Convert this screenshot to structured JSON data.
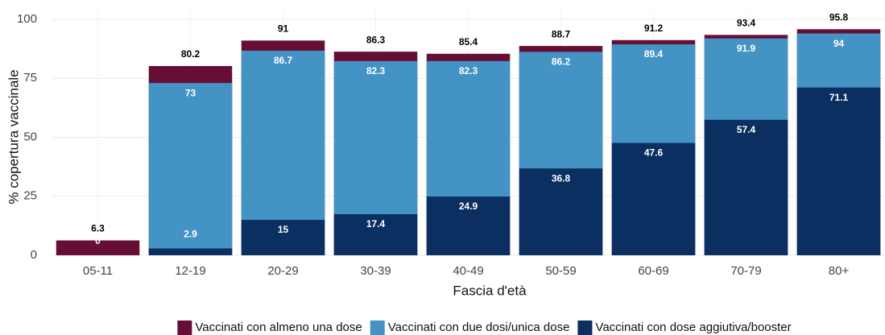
{
  "chart_data": {
    "type": "bar",
    "x_label": "Fascia d'età",
    "y_label": "% copertura vaccinale",
    "categories": [
      "05-11",
      "12-19",
      "20-29",
      "30-39",
      "40-49",
      "50-59",
      "60-69",
      "70-79",
      "80+"
    ],
    "series": [
      {
        "name": "Vaccinati con almeno una dose",
        "color": "#670e36",
        "values": [
          6.3,
          80.2,
          91,
          86.3,
          85.4,
          88.7,
          91.2,
          93.4,
          95.8
        ]
      },
      {
        "name": "Vaccinati con due dosi/unica dose",
        "color": "#4393c4",
        "values": [
          0,
          73,
          86.7,
          82.3,
          82.3,
          86.2,
          89.4,
          91.9,
          94
        ]
      },
      {
        "name": "Vaccinati con dose aggiutiva/booster",
        "color": "#0b2f60",
        "values": [
          null,
          2.9,
          15,
          17.4,
          24.9,
          36.8,
          47.6,
          57.4,
          71.1
        ]
      }
    ],
    "ylim": [
      0,
      100
    ],
    "yticks": [
      0,
      25,
      50,
      75,
      100
    ],
    "grid": true
  }
}
